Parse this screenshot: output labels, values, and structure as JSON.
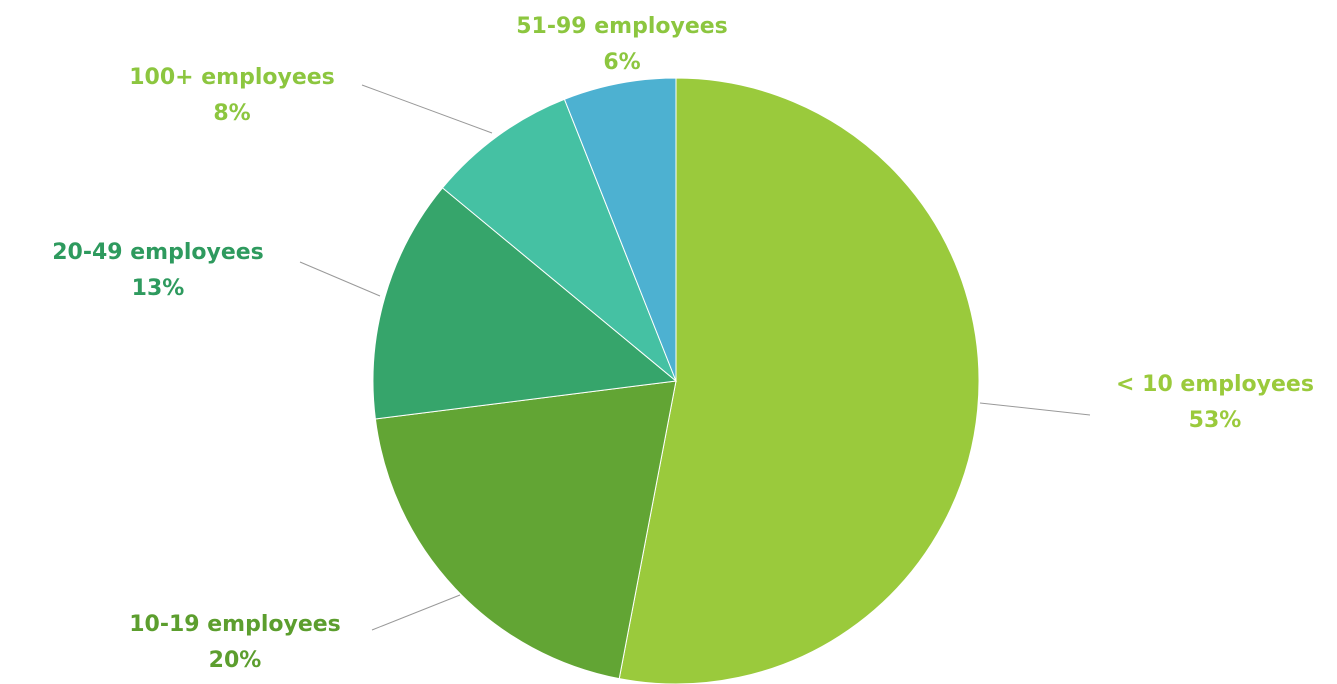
{
  "chart_data": {
    "type": "pie",
    "categories": [
      "< 10 employees",
      "10-19 employees",
      "20-49 employees",
      "100+ employees",
      "51-99 employees"
    ],
    "values": [
      53,
      20,
      13,
      8,
      6
    ],
    "value_labels": [
      "53%",
      "20%",
      "13%",
      "8%",
      "6%"
    ],
    "colors": [
      "#9aca3c",
      "#62a534",
      "#36a56b",
      "#45c1a3",
      "#4db1d1"
    ],
    "label_colors": [
      "#9aca3c",
      "#5c9e2e",
      "#2e9a5e",
      "#8cc63f",
      "#8cc63f"
    ]
  }
}
